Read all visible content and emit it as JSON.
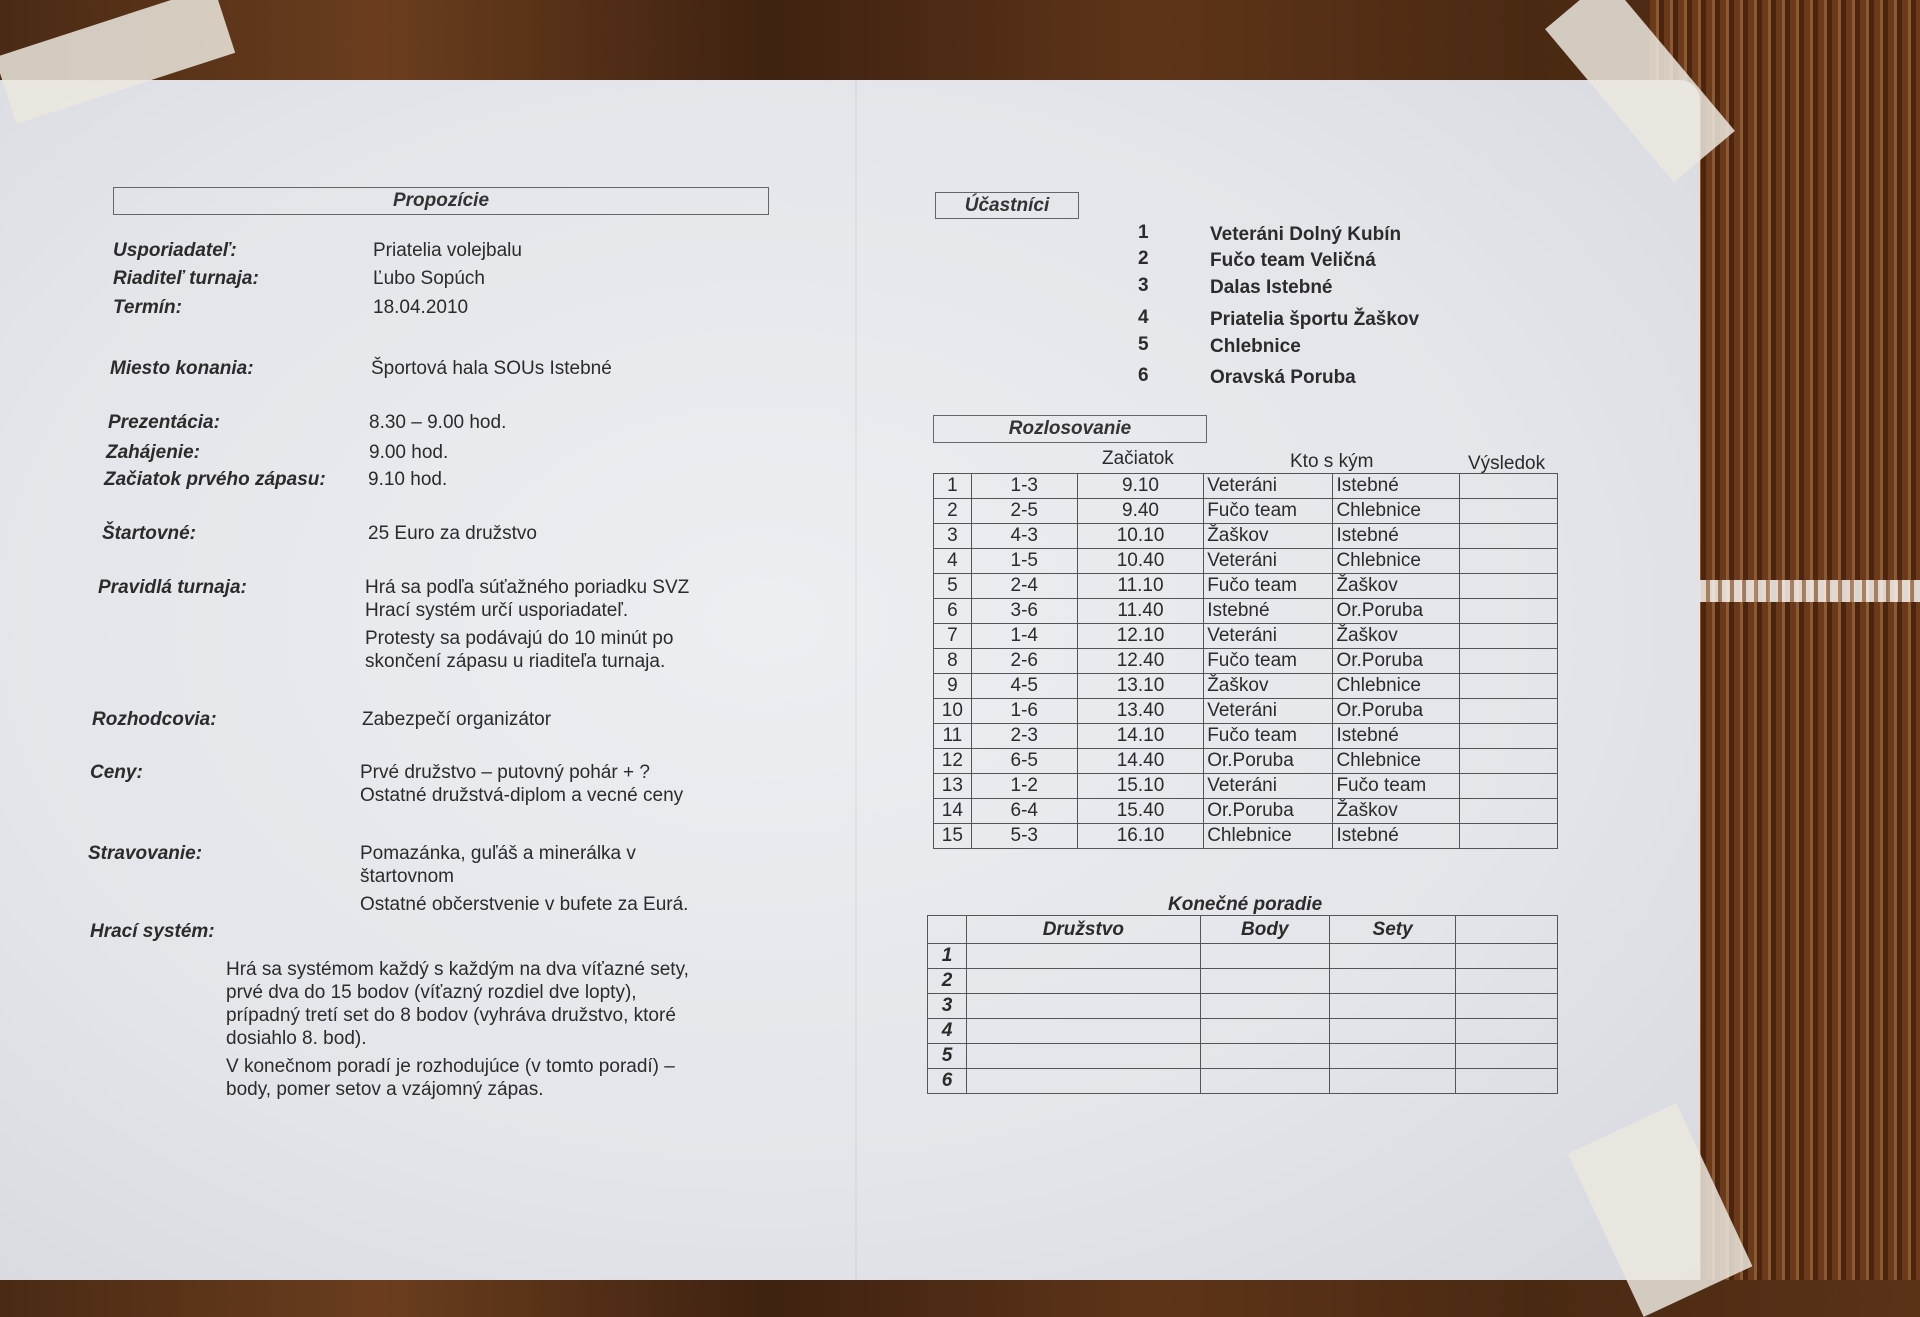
{
  "left": {
    "title": "Propozície",
    "fields": [
      {
        "label": "Usporiadateľ:",
        "lines": [
          "Priatelia volejbalu"
        ]
      },
      {
        "label": "Riaditeľ turnaja:",
        "lines": [
          "Ľubo Sopúch"
        ]
      },
      {
        "label": "Termín:",
        "lines": [
          "18.04.2010"
        ]
      },
      {
        "label": "Miesto konania:",
        "lines": [
          "Športová hala SOUs Istebné"
        ]
      },
      {
        "label": "Prezentácia:",
        "lines": [
          "8.30 – 9.00 hod."
        ]
      },
      {
        "label": "Zahájenie:",
        "lines": [
          "9.00 hod."
        ]
      },
      {
        "label": "Začiatok prvého zápasu:",
        "lines": [
          "9.10 hod."
        ]
      },
      {
        "label": "Štartovné:",
        "lines": [
          "25 Euro za družstvo"
        ]
      },
      {
        "label": "Pravidlá turnaja:",
        "lines": [
          "Hrá sa podľa súťažného poriadku SVZ",
          "Hrací systém určí usporiadateľ.",
          "Protesty sa podávajú do 10 minút po",
          "skončení zápasu u riaditeľa turnaja."
        ]
      },
      {
        "label": "Rozhodcovia:",
        "lines": [
          "Zabezpečí organizátor"
        ]
      },
      {
        "label": "Ceny:",
        "lines": [
          "Prvé družstvo – putovný pohár + ?",
          "Ostatné družstvá-diplom a vecné ceny"
        ]
      },
      {
        "label": "Stravovanie:",
        "lines": [
          "Pomazánka, guľáš a minerálka v",
          "štartovnom",
          "Ostatné občerstvenie v bufete za Eurá."
        ]
      },
      {
        "label": "Hrací systém:",
        "lines": [
          "Hrá sa systémom každý s každým na dva víťazné sety,",
          "prvé dva do 15 bodov (víťazný rozdiel dve lopty),",
          "prípadný tretí set do 8 bodov (vyhráva družstvo, ktoré",
          "dosiahlo 8. bod).",
          "V konečnom poradí je rozhodujúce (v tomto poradí) –",
          "body, pomer setov a vzájomný zápas."
        ]
      }
    ]
  },
  "participants": {
    "title": "Účastníci",
    "teams": [
      {
        "no": "1",
        "name": "Veteráni Dolný Kubín"
      },
      {
        "no": "2",
        "name": "Fučo team Veličná"
      },
      {
        "no": "3",
        "name": "Dalas Istebné"
      },
      {
        "no": "4",
        "name": "Priatelia športu Žaškov"
      },
      {
        "no": "5",
        "name": "Chlebnice"
      },
      {
        "no": "6",
        "name": "Oravská Poruba"
      }
    ]
  },
  "schedule": {
    "title": "Rozlosovanie",
    "headers": {
      "start": "Začiatok",
      "match": "Kto s kým",
      "result": "Výsledok"
    },
    "rows": [
      [
        "1",
        "1-3",
        "9.10",
        "Veteráni",
        "Istebné",
        ""
      ],
      [
        "2",
        "2-5",
        "9.40",
        "Fučo team",
        "Chlebnice",
        ""
      ],
      [
        "3",
        "4-3",
        "10.10",
        "Žaškov",
        "Istebné",
        ""
      ],
      [
        "4",
        "1-5",
        "10.40",
        "Veteráni",
        "Chlebnice",
        ""
      ],
      [
        "5",
        "2-4",
        "11.10",
        "Fučo team",
        "Žaškov",
        ""
      ],
      [
        "6",
        "3-6",
        "11.40",
        "Istebné",
        "Or.Poruba",
        ""
      ],
      [
        "7",
        "1-4",
        "12.10",
        "Veteráni",
        "Žaškov",
        ""
      ],
      [
        "8",
        "2-6",
        "12.40",
        "Fučo team",
        "Or.Poruba",
        ""
      ],
      [
        "9",
        "4-5",
        "13.10",
        "Žaškov",
        "Chlebnice",
        ""
      ],
      [
        "10",
        "1-6",
        "13.40",
        "Veteráni",
        "Or.Poruba",
        ""
      ],
      [
        "11",
        "2-3",
        "14.10",
        "Fučo team",
        "Istebné",
        ""
      ],
      [
        "12",
        "6-5",
        "14.40",
        "Or.Poruba",
        "Chlebnice",
        ""
      ],
      [
        "13",
        "1-2",
        "15.10",
        "Veteráni",
        "Fučo team",
        ""
      ],
      [
        "14",
        "6-4",
        "15.40",
        "Or.Poruba",
        "Žaškov",
        ""
      ],
      [
        "15",
        "5-3",
        "16.10",
        "Chlebnice",
        "Istebné",
        ""
      ]
    ]
  },
  "standings": {
    "title": "Konečné poradie",
    "headers": [
      "",
      "Družstvo",
      "Body",
      "Sety",
      ""
    ],
    "rows": [
      "1",
      "2",
      "3",
      "4",
      "5",
      "6"
    ]
  }
}
